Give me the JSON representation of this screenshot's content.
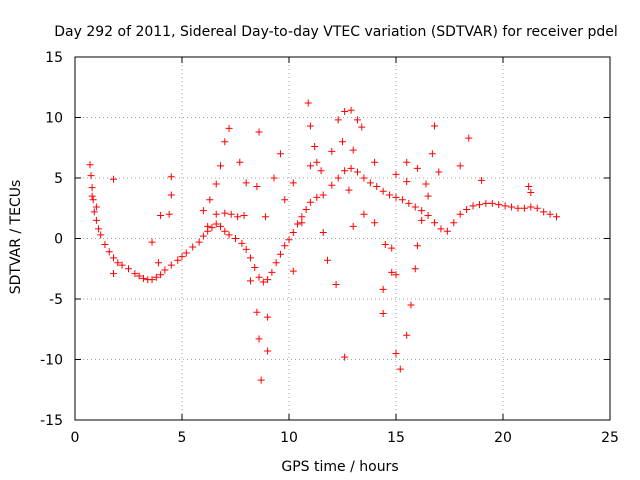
{
  "chart_data": {
    "type": "scatter",
    "title": "Day 292 of 2011, Sidereal Day-to-day VTEC variation (SDTVAR) for receiver pdel",
    "xlabel": "GPS time / hours",
    "ylabel": "SDTVAR / TECUs",
    "xlim": [
      0,
      25
    ],
    "ylim": [
      -15,
      15
    ],
    "xticks": [
      0,
      5,
      10,
      15,
      20,
      25
    ],
    "yticks": [
      -15,
      -10,
      -5,
      0,
      5,
      10,
      15
    ],
    "xtick_labels": [
      "0",
      "5",
      "10",
      "15",
      "20",
      "25"
    ],
    "ytick_labels": [
      "-15",
      "-10",
      "-5",
      "0",
      "5",
      "10",
      "15"
    ],
    "grid": true,
    "marker": "+",
    "color": "#ff0000",
    "series": [
      {
        "name": "pdel",
        "note": "dense point cloud; representative points sampled from envelope",
        "points": [
          [
            0.7,
            6.1
          ],
          [
            0.75,
            5.2
          ],
          [
            0.8,
            4.2
          ],
          [
            0.85,
            3.2
          ],
          [
            0.9,
            2.2
          ],
          [
            1.0,
            1.5
          ],
          [
            1.1,
            0.8
          ],
          [
            1.2,
            0.3
          ],
          [
            1.4,
            -0.5
          ],
          [
            1.6,
            -1.1
          ],
          [
            1.8,
            -1.6
          ],
          [
            2.0,
            -2.0
          ],
          [
            2.2,
            -2.2
          ],
          [
            2.5,
            -2.5
          ],
          [
            2.8,
            -2.9
          ],
          [
            3.0,
            -3.1
          ],
          [
            3.2,
            -3.3
          ],
          [
            3.4,
            -3.4
          ],
          [
            3.6,
            -3.4
          ],
          [
            3.8,
            -3.2
          ],
          [
            4.0,
            -3.0
          ],
          [
            4.2,
            -2.6
          ],
          [
            4.5,
            -2.2
          ],
          [
            4.8,
            -1.8
          ],
          [
            5.0,
            -1.5
          ],
          [
            5.2,
            -1.2
          ],
          [
            5.5,
            -0.7
          ],
          [
            5.8,
            -0.3
          ],
          [
            6.0,
            0.2
          ],
          [
            6.2,
            0.6
          ],
          [
            6.4,
            0.9
          ],
          [
            6.6,
            1.2
          ],
          [
            6.8,
            1.0
          ],
          [
            7.0,
            0.6
          ],
          [
            7.2,
            0.3
          ],
          [
            7.5,
            0.0
          ],
          [
            7.8,
            -0.4
          ],
          [
            8.0,
            -0.9
          ],
          [
            8.2,
            -1.6
          ],
          [
            8.4,
            -2.4
          ],
          [
            8.6,
            -3.2
          ],
          [
            8.8,
            -3.6
          ],
          [
            9.0,
            -3.4
          ],
          [
            9.2,
            -2.8
          ],
          [
            9.4,
            -2.0
          ],
          [
            9.6,
            -1.3
          ],
          [
            9.8,
            -0.6
          ],
          [
            10.0,
            -0.1
          ],
          [
            10.2,
            0.5
          ],
          [
            10.4,
            1.2
          ],
          [
            10.6,
            1.8
          ],
          [
            10.8,
            2.4
          ],
          [
            11.0,
            3.0
          ],
          [
            11.3,
            3.4
          ],
          [
            11.6,
            3.6
          ],
          [
            12.0,
            4.4
          ],
          [
            12.3,
            5.0
          ],
          [
            12.6,
            5.6
          ],
          [
            12.9,
            5.8
          ],
          [
            13.2,
            5.5
          ],
          [
            13.5,
            5.0
          ],
          [
            13.8,
            4.6
          ],
          [
            14.1,
            4.3
          ],
          [
            14.4,
            3.9
          ],
          [
            14.7,
            3.6
          ],
          [
            15.0,
            3.4
          ],
          [
            15.3,
            3.2
          ],
          [
            15.6,
            2.9
          ],
          [
            15.9,
            2.6
          ],
          [
            16.2,
            2.3
          ],
          [
            16.5,
            1.9
          ],
          [
            16.8,
            1.3
          ],
          [
            17.1,
            0.8
          ],
          [
            17.4,
            0.6
          ],
          [
            17.7,
            1.3
          ],
          [
            18.0,
            2.0
          ],
          [
            18.3,
            2.4
          ],
          [
            18.6,
            2.7
          ],
          [
            18.9,
            2.8
          ],
          [
            19.2,
            2.9
          ],
          [
            19.5,
            2.9
          ],
          [
            19.8,
            2.8
          ],
          [
            20.1,
            2.7
          ],
          [
            20.4,
            2.6
          ],
          [
            20.7,
            2.5
          ],
          [
            21.0,
            2.5
          ],
          [
            21.3,
            2.6
          ],
          [
            21.6,
            2.5
          ],
          [
            21.9,
            2.2
          ],
          [
            22.2,
            2.0
          ],
          [
            22.5,
            1.8
          ],
          [
            6.0,
            2.3
          ],
          [
            6.3,
            3.2
          ],
          [
            6.6,
            4.5
          ],
          [
            6.8,
            6.0
          ],
          [
            7.0,
            8.0
          ],
          [
            7.2,
            9.1
          ],
          [
            6.2,
            1.0
          ],
          [
            6.6,
            2.0
          ],
          [
            7.0,
            2.1
          ],
          [
            7.3,
            2.0
          ],
          [
            7.6,
            1.8
          ],
          [
            7.9,
            1.9
          ],
          [
            4.0,
            1.9
          ],
          [
            4.4,
            2.0
          ],
          [
            4.5,
            5.1
          ],
          [
            4.5,
            3.6
          ],
          [
            3.6,
            -0.3
          ],
          [
            3.9,
            -2.0
          ],
          [
            1.8,
            4.9
          ],
          [
            1.8,
            -2.9
          ],
          [
            0.8,
            3.5
          ],
          [
            1.0,
            2.6
          ],
          [
            7.7,
            6.3
          ],
          [
            8.0,
            4.6
          ],
          [
            8.5,
            4.3
          ],
          [
            8.6,
            8.8
          ],
          [
            8.5,
            -6.1
          ],
          [
            8.6,
            -8.3
          ],
          [
            8.7,
            -11.7
          ],
          [
            9.0,
            -9.3
          ],
          [
            9.0,
            -6.5
          ],
          [
            8.2,
            -3.5
          ],
          [
            8.9,
            1.8
          ],
          [
            9.3,
            5.0
          ],
          [
            9.6,
            7.0
          ],
          [
            9.8,
            3.2
          ],
          [
            10.2,
            -2.7
          ],
          [
            10.6,
            1.3
          ],
          [
            10.2,
            4.6
          ],
          [
            10.9,
            11.2
          ],
          [
            11.0,
            9.3
          ],
          [
            11.2,
            7.6
          ],
          [
            11.5,
            5.6
          ],
          [
            11.6,
            0.5
          ],
          [
            11.8,
            -1.8
          ],
          [
            12.2,
            -3.8
          ],
          [
            12.6,
            -9.8
          ],
          [
            12.3,
            9.8
          ],
          [
            12.6,
            10.5
          ],
          [
            12.9,
            10.6
          ],
          [
            13.2,
            9.8
          ],
          [
            13.4,
            9.2
          ],
          [
            12.8,
            4.0
          ],
          [
            13.0,
            1.0
          ],
          [
            13.5,
            2.0
          ],
          [
            14.0,
            1.3
          ],
          [
            14.5,
            -0.5
          ],
          [
            14.8,
            -2.8
          ],
          [
            14.4,
            -4.2
          ],
          [
            14.4,
            -6.2
          ],
          [
            15.0,
            -9.5
          ],
          [
            15.2,
            -10.8
          ],
          [
            15.5,
            -8.0
          ],
          [
            15.7,
            -5.5
          ],
          [
            15.9,
            -2.5
          ],
          [
            16.0,
            -0.6
          ],
          [
            16.2,
            1.5
          ],
          [
            16.4,
            4.5
          ],
          [
            16.5,
            3.5
          ],
          [
            16.7,
            7.0
          ],
          [
            16.8,
            9.3
          ],
          [
            17.0,
            5.5
          ],
          [
            18.0,
            6.0
          ],
          [
            18.4,
            8.3
          ],
          [
            19.0,
            4.8
          ],
          [
            21.2,
            4.3
          ],
          [
            21.3,
            3.8
          ],
          [
            11.0,
            6.0
          ],
          [
            11.3,
            6.3
          ],
          [
            12.0,
            7.2
          ],
          [
            12.5,
            8.0
          ],
          [
            13.0,
            7.3
          ],
          [
            14.0,
            6.3
          ],
          [
            15.0,
            5.3
          ],
          [
            15.5,
            4.7
          ],
          [
            15.5,
            6.3
          ],
          [
            16.0,
            5.8
          ],
          [
            14.8,
            -0.8
          ],
          [
            15.0,
            -3.0
          ]
        ]
      }
    ]
  }
}
